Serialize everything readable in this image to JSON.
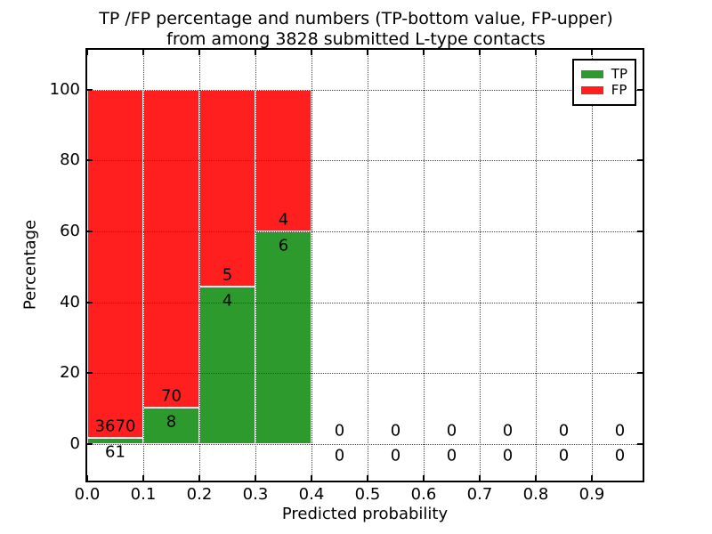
{
  "title": {
    "line1": "TP /FP percentage and numbers (TP-bottom value, FP-upper)",
    "line2": "from among 3828 submitted L-type contacts"
  },
  "chart_data": {
    "type": "bar",
    "subtype": "stacked-percentage-histogram",
    "title": "TP /FP percentage and numbers (TP-bottom value, FP-upper) from among 3828 submitted L-type contacts",
    "xlabel": "Predicted probability",
    "ylabel": "Percentage",
    "total_submitted": 3828,
    "xlim": [
      0.0,
      0.99
    ],
    "ylim": [
      -10.5,
      111
    ],
    "grid": true,
    "x_ticks": [
      {
        "value": 0.0,
        "label": "0.0"
      },
      {
        "value": 0.1,
        "label": "0.1"
      },
      {
        "value": 0.2,
        "label": "0.2"
      },
      {
        "value": 0.3,
        "label": "0.3"
      },
      {
        "value": 0.4,
        "label": "0.4"
      },
      {
        "value": 0.5,
        "label": "0.5"
      },
      {
        "value": 0.6,
        "label": "0.6"
      },
      {
        "value": 0.7,
        "label": "0.7"
      },
      {
        "value": 0.8,
        "label": "0.8"
      },
      {
        "value": 0.9,
        "label": "0.9"
      }
    ],
    "y_ticks": [
      {
        "value": 0,
        "label": "0"
      },
      {
        "value": 20,
        "label": "20"
      },
      {
        "value": 40,
        "label": "40"
      },
      {
        "value": 60,
        "label": "60"
      },
      {
        "value": 80,
        "label": "80"
      },
      {
        "value": 100,
        "label": "100"
      }
    ],
    "legend": {
      "position": "upper right",
      "entries": [
        {
          "label": "TP",
          "color": "#2d9a2d"
        },
        {
          "label": "FP",
          "color": "#ff1f1f"
        }
      ]
    },
    "colors": {
      "tp": "#2d9a2d",
      "fp": "#ff1f1f",
      "bar_edge": "#ffffff"
    },
    "bins": [
      {
        "range": [
          0.0,
          0.1
        ],
        "tp_count": 61,
        "fp_count": 3670,
        "tp_pct": 1.63,
        "fp_pct": 98.37
      },
      {
        "range": [
          0.1,
          0.2
        ],
        "tp_count": 8,
        "fp_count": 70,
        "tp_pct": 10.26,
        "fp_pct": 89.74
      },
      {
        "range": [
          0.2,
          0.3
        ],
        "tp_count": 4,
        "fp_count": 5,
        "tp_pct": 44.44,
        "fp_pct": 55.56
      },
      {
        "range": [
          0.3,
          0.4
        ],
        "tp_count": 6,
        "fp_count": 4,
        "tp_pct": 60.0,
        "fp_pct": 40.0
      },
      {
        "range": [
          0.4,
          0.5
        ],
        "tp_count": 0,
        "fp_count": 0,
        "tp_pct": 0,
        "fp_pct": 0
      },
      {
        "range": [
          0.5,
          0.6
        ],
        "tp_count": 0,
        "fp_count": 0,
        "tp_pct": 0,
        "fp_pct": 0
      },
      {
        "range": [
          0.6,
          0.7
        ],
        "tp_count": 0,
        "fp_count": 0,
        "tp_pct": 0,
        "fp_pct": 0
      },
      {
        "range": [
          0.7,
          0.8
        ],
        "tp_count": 0,
        "fp_count": 0,
        "tp_pct": 0,
        "fp_pct": 0
      },
      {
        "range": [
          0.8,
          0.9
        ],
        "tp_count": 0,
        "fp_count": 0,
        "tp_pct": 0,
        "fp_pct": 0
      },
      {
        "range": [
          0.9,
          1.0
        ],
        "tp_count": 0,
        "fp_count": 0,
        "tp_pct": 0,
        "fp_pct": 0
      }
    ]
  }
}
